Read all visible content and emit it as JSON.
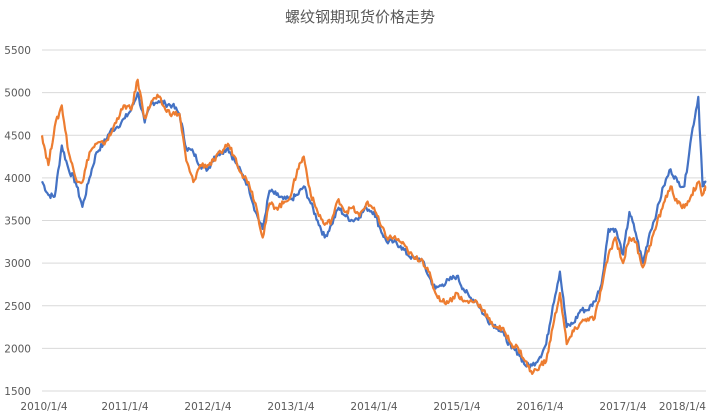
{
  "chart_data": {
    "type": "line",
    "title": "螺纹钢期现货价格走势",
    "xlabel": "",
    "ylabel": "",
    "ylim": [
      1500,
      5500
    ],
    "y_ticks": [
      1500,
      2000,
      2500,
      3000,
      3500,
      4000,
      4500,
      5000,
      5500
    ],
    "x_tick_labels": [
      "2010/1/4",
      "2011/1/4",
      "2012/1/4",
      "2013/1/4",
      "2014/1/4",
      "2015/1/4",
      "2016/1/4",
      "2017/1/4",
      "2018/1/4"
    ],
    "xlim": [
      "2010-01-04",
      "2018-01-04"
    ],
    "grid": "horizontal",
    "legend": "none",
    "series": [
      {
        "color": "#4472C4",
        "points": [
          [
            "2010-01-04",
            3960
          ],
          [
            "2010-02-01",
            3800
          ],
          [
            "2010-03-01",
            3780
          ],
          [
            "2010-04-01",
            4380
          ],
          [
            "2010-05-01",
            4100
          ],
          [
            "2010-06-01",
            3950
          ],
          [
            "2010-07-01",
            3660
          ],
          [
            "2010-08-01",
            4000
          ],
          [
            "2010-09-01",
            4300
          ],
          [
            "2010-10-01",
            4400
          ],
          [
            "2010-11-01",
            4550
          ],
          [
            "2010-12-01",
            4600
          ],
          [
            "2011-01-04",
            4700
          ],
          [
            "2011-02-01",
            4800
          ],
          [
            "2011-03-01",
            5000
          ],
          [
            "2011-04-01",
            4650
          ],
          [
            "2011-05-01",
            4880
          ],
          [
            "2011-06-01",
            4900
          ],
          [
            "2011-07-01",
            4870
          ],
          [
            "2011-08-01",
            4850
          ],
          [
            "2011-09-01",
            4750
          ],
          [
            "2011-10-01",
            4350
          ],
          [
            "2011-11-01",
            4300
          ],
          [
            "2011-12-01",
            4150
          ],
          [
            "2012-01-04",
            4100
          ],
          [
            "2012-02-01",
            4250
          ],
          [
            "2012-03-01",
            4300
          ],
          [
            "2012-04-01",
            4350
          ],
          [
            "2012-05-01",
            4200
          ],
          [
            "2012-06-01",
            4050
          ],
          [
            "2012-07-01",
            3900
          ],
          [
            "2012-08-01",
            3600
          ],
          [
            "2012-09-01",
            3400
          ],
          [
            "2012-10-01",
            3850
          ],
          [
            "2012-11-01",
            3800
          ],
          [
            "2012-12-01",
            3750
          ],
          [
            "2013-01-04",
            3750
          ],
          [
            "2013-02-01",
            3800
          ],
          [
            "2013-03-01",
            3900
          ],
          [
            "2013-04-01",
            3700
          ],
          [
            "2013-05-01",
            3500
          ],
          [
            "2013-06-01",
            3300
          ],
          [
            "2013-07-01",
            3450
          ],
          [
            "2013-08-01",
            3650
          ],
          [
            "2013-09-01",
            3550
          ],
          [
            "2013-10-01",
            3500
          ],
          [
            "2013-11-01",
            3550
          ],
          [
            "2013-12-01",
            3650
          ],
          [
            "2014-01-04",
            3600
          ],
          [
            "2014-02-01",
            3400
          ],
          [
            "2014-03-01",
            3250
          ],
          [
            "2014-04-01",
            3250
          ],
          [
            "2014-05-01",
            3200
          ],
          [
            "2014-06-01",
            3100
          ],
          [
            "2014-07-01",
            3050
          ],
          [
            "2014-08-01",
            3050
          ],
          [
            "2014-09-01",
            2850
          ],
          [
            "2014-10-01",
            2700
          ],
          [
            "2014-11-01",
            2750
          ],
          [
            "2014-12-01",
            2800
          ],
          [
            "2015-01-04",
            2850
          ],
          [
            "2015-02-01",
            2700
          ],
          [
            "2015-03-01",
            2600
          ],
          [
            "2015-04-01",
            2550
          ],
          [
            "2015-05-01",
            2400
          ],
          [
            "2015-06-01",
            2300
          ],
          [
            "2015-07-01",
            2250
          ],
          [
            "2015-08-01",
            2150
          ],
          [
            "2015-09-01",
            2000
          ],
          [
            "2015-10-01",
            1950
          ],
          [
            "2015-11-01",
            1800
          ],
          [
            "2015-12-01",
            1800
          ],
          [
            "2016-01-04",
            1900
          ],
          [
            "2016-02-01",
            2050
          ],
          [
            "2016-03-01",
            2500
          ],
          [
            "2016-04-01",
            2900
          ],
          [
            "2016-05-01",
            2250
          ],
          [
            "2016-06-01",
            2300
          ],
          [
            "2016-07-01",
            2450
          ],
          [
            "2016-08-01",
            2450
          ],
          [
            "2016-09-01",
            2550
          ],
          [
            "2016-10-01",
            2750
          ],
          [
            "2016-11-01",
            3400
          ],
          [
            "2016-12-01",
            3400
          ],
          [
            "2017-01-04",
            3100
          ],
          [
            "2017-02-01",
            3600
          ],
          [
            "2017-03-01",
            3350
          ],
          [
            "2017-04-01",
            3000
          ],
          [
            "2017-05-01",
            3350
          ],
          [
            "2017-06-01",
            3600
          ],
          [
            "2017-07-01",
            3900
          ],
          [
            "2017-08-01",
            4100
          ],
          [
            "2017-09-01",
            3950
          ],
          [
            "2017-10-01",
            3900
          ],
          [
            "2017-11-01",
            4500
          ],
          [
            "2017-12-01",
            4950
          ],
          [
            "2017-12-20",
            3900
          ],
          [
            "2018-01-04",
            3950
          ]
        ]
      },
      {
        "color": "#ED7D31",
        "points": [
          [
            "2010-01-04",
            4500
          ],
          [
            "2010-02-01",
            4150
          ],
          [
            "2010-03-01",
            4600
          ],
          [
            "2010-04-01",
            4850
          ],
          [
            "2010-05-01",
            4300
          ],
          [
            "2010-06-01",
            4000
          ],
          [
            "2010-07-01",
            3950
          ],
          [
            "2010-08-01",
            4300
          ],
          [
            "2010-09-01",
            4400
          ],
          [
            "2010-10-01",
            4400
          ],
          [
            "2010-11-01",
            4500
          ],
          [
            "2010-12-01",
            4700
          ],
          [
            "2011-01-04",
            4850
          ],
          [
            "2011-02-01",
            4800
          ],
          [
            "2011-03-01",
            5150
          ],
          [
            "2011-04-01",
            4700
          ],
          [
            "2011-05-01",
            4900
          ],
          [
            "2011-06-01",
            4950
          ],
          [
            "2011-07-01",
            4800
          ],
          [
            "2011-08-01",
            4750
          ],
          [
            "2011-09-01",
            4750
          ],
          [
            "2011-10-01",
            4200
          ],
          [
            "2011-11-01",
            3950
          ],
          [
            "2011-12-01",
            4150
          ],
          [
            "2012-01-04",
            4150
          ],
          [
            "2012-02-01",
            4200
          ],
          [
            "2012-03-01",
            4300
          ],
          [
            "2012-04-01",
            4400
          ],
          [
            "2012-05-01",
            4250
          ],
          [
            "2012-06-01",
            4050
          ],
          [
            "2012-07-01",
            3950
          ],
          [
            "2012-08-01",
            3700
          ],
          [
            "2012-09-01",
            3300
          ],
          [
            "2012-10-01",
            3700
          ],
          [
            "2012-11-01",
            3650
          ],
          [
            "2012-12-01",
            3700
          ],
          [
            "2013-01-04",
            3800
          ],
          [
            "2013-02-01",
            4100
          ],
          [
            "2013-03-01",
            4250
          ],
          [
            "2013-04-01",
            3800
          ],
          [
            "2013-05-01",
            3600
          ],
          [
            "2013-06-01",
            3450
          ],
          [
            "2013-07-01",
            3500
          ],
          [
            "2013-08-01",
            3750
          ],
          [
            "2013-09-01",
            3600
          ],
          [
            "2013-10-01",
            3650
          ],
          [
            "2013-11-01",
            3550
          ],
          [
            "2013-12-01",
            3700
          ],
          [
            "2014-01-04",
            3650
          ],
          [
            "2014-02-01",
            3450
          ],
          [
            "2014-03-01",
            3300
          ],
          [
            "2014-04-01",
            3300
          ],
          [
            "2014-05-01",
            3250
          ],
          [
            "2014-06-01",
            3150
          ],
          [
            "2014-07-01",
            3050
          ],
          [
            "2014-08-01",
            3050
          ],
          [
            "2014-09-01",
            2900
          ],
          [
            "2014-10-01",
            2650
          ],
          [
            "2014-11-01",
            2550
          ],
          [
            "2014-12-01",
            2550
          ],
          [
            "2015-01-04",
            2650
          ],
          [
            "2015-02-01",
            2550
          ],
          [
            "2015-03-01",
            2550
          ],
          [
            "2015-04-01",
            2550
          ],
          [
            "2015-05-01",
            2450
          ],
          [
            "2015-06-01",
            2300
          ],
          [
            "2015-07-01",
            2250
          ],
          [
            "2015-08-01",
            2200
          ],
          [
            "2015-09-01",
            2050
          ],
          [
            "2015-10-01",
            2000
          ],
          [
            "2015-11-01",
            1850
          ],
          [
            "2015-12-01",
            1700
          ],
          [
            "2016-01-04",
            1800
          ],
          [
            "2016-02-01",
            1850
          ],
          [
            "2016-03-01",
            2250
          ],
          [
            "2016-04-01",
            2650
          ],
          [
            "2016-05-01",
            2050
          ],
          [
            "2016-06-01",
            2200
          ],
          [
            "2016-07-01",
            2300
          ],
          [
            "2016-08-01",
            2350
          ],
          [
            "2016-09-01",
            2350
          ],
          [
            "2016-10-01",
            2700
          ],
          [
            "2016-11-01",
            3100
          ],
          [
            "2016-12-01",
            3300
          ],
          [
            "2017-01-04",
            3000
          ],
          [
            "2017-02-01",
            3300
          ],
          [
            "2017-03-01",
            3250
          ],
          [
            "2017-04-01",
            2950
          ],
          [
            "2017-05-01",
            3200
          ],
          [
            "2017-06-01",
            3450
          ],
          [
            "2017-07-01",
            3700
          ],
          [
            "2017-08-01",
            3900
          ],
          [
            "2017-09-01",
            3700
          ],
          [
            "2017-10-01",
            3650
          ],
          [
            "2017-11-01",
            3800
          ],
          [
            "2017-12-01",
            3950
          ],
          [
            "2017-12-20",
            3800
          ],
          [
            "2018-01-04",
            3900
          ]
        ]
      }
    ]
  }
}
